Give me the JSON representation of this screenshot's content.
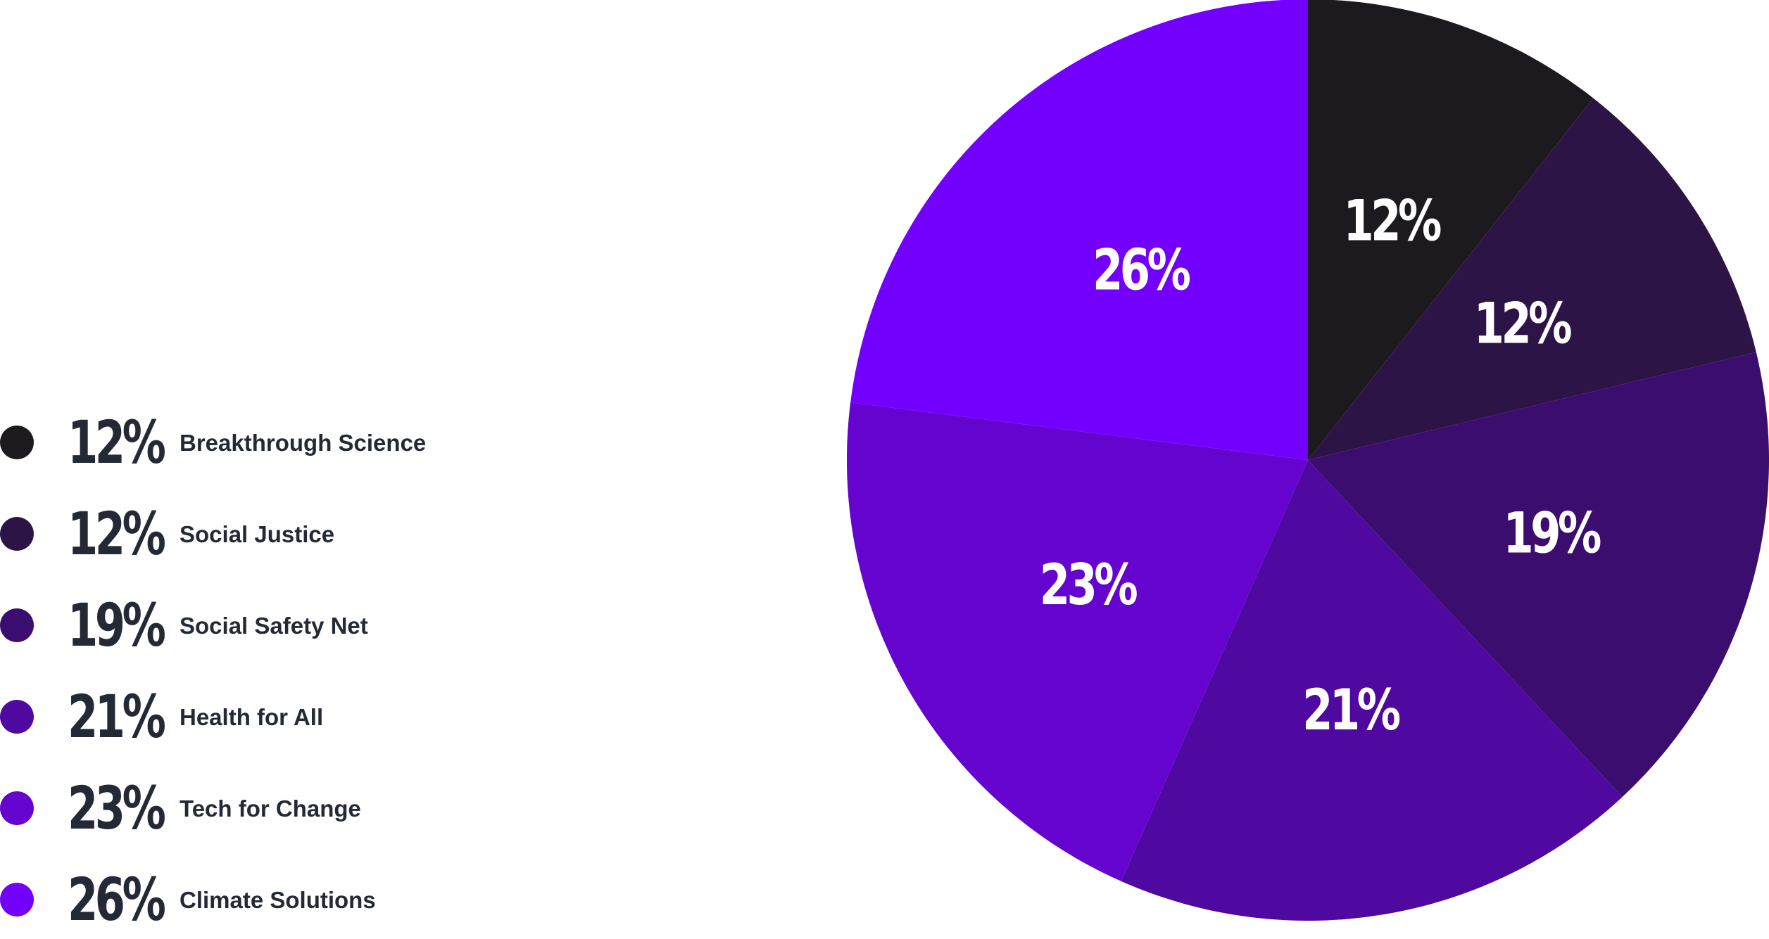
{
  "chart_data": {
    "type": "pie",
    "start_angle_deg": 0,
    "direction": "clockwise",
    "legend_position": "left",
    "slices": [
      {
        "label": "Breakthrough Science",
        "value": 12,
        "display": "12%",
        "color": "#1c1a1f"
      },
      {
        "label": "Social Justice",
        "value": 12,
        "display": "12%",
        "color": "#2d1447"
      },
      {
        "label": "Social Safety Net",
        "value": 19,
        "display": "19%",
        "color": "#3b0d6e"
      },
      {
        "label": "Health for All",
        "value": 21,
        "display": "21%",
        "color": "#4f08a0"
      },
      {
        "label": "Tech for Change",
        "value": 23,
        "display": "23%",
        "color": "#6503cf"
      },
      {
        "label": "Climate Solutions",
        "value": 26,
        "display": "26%",
        "color": "#7300fe"
      }
    ]
  }
}
